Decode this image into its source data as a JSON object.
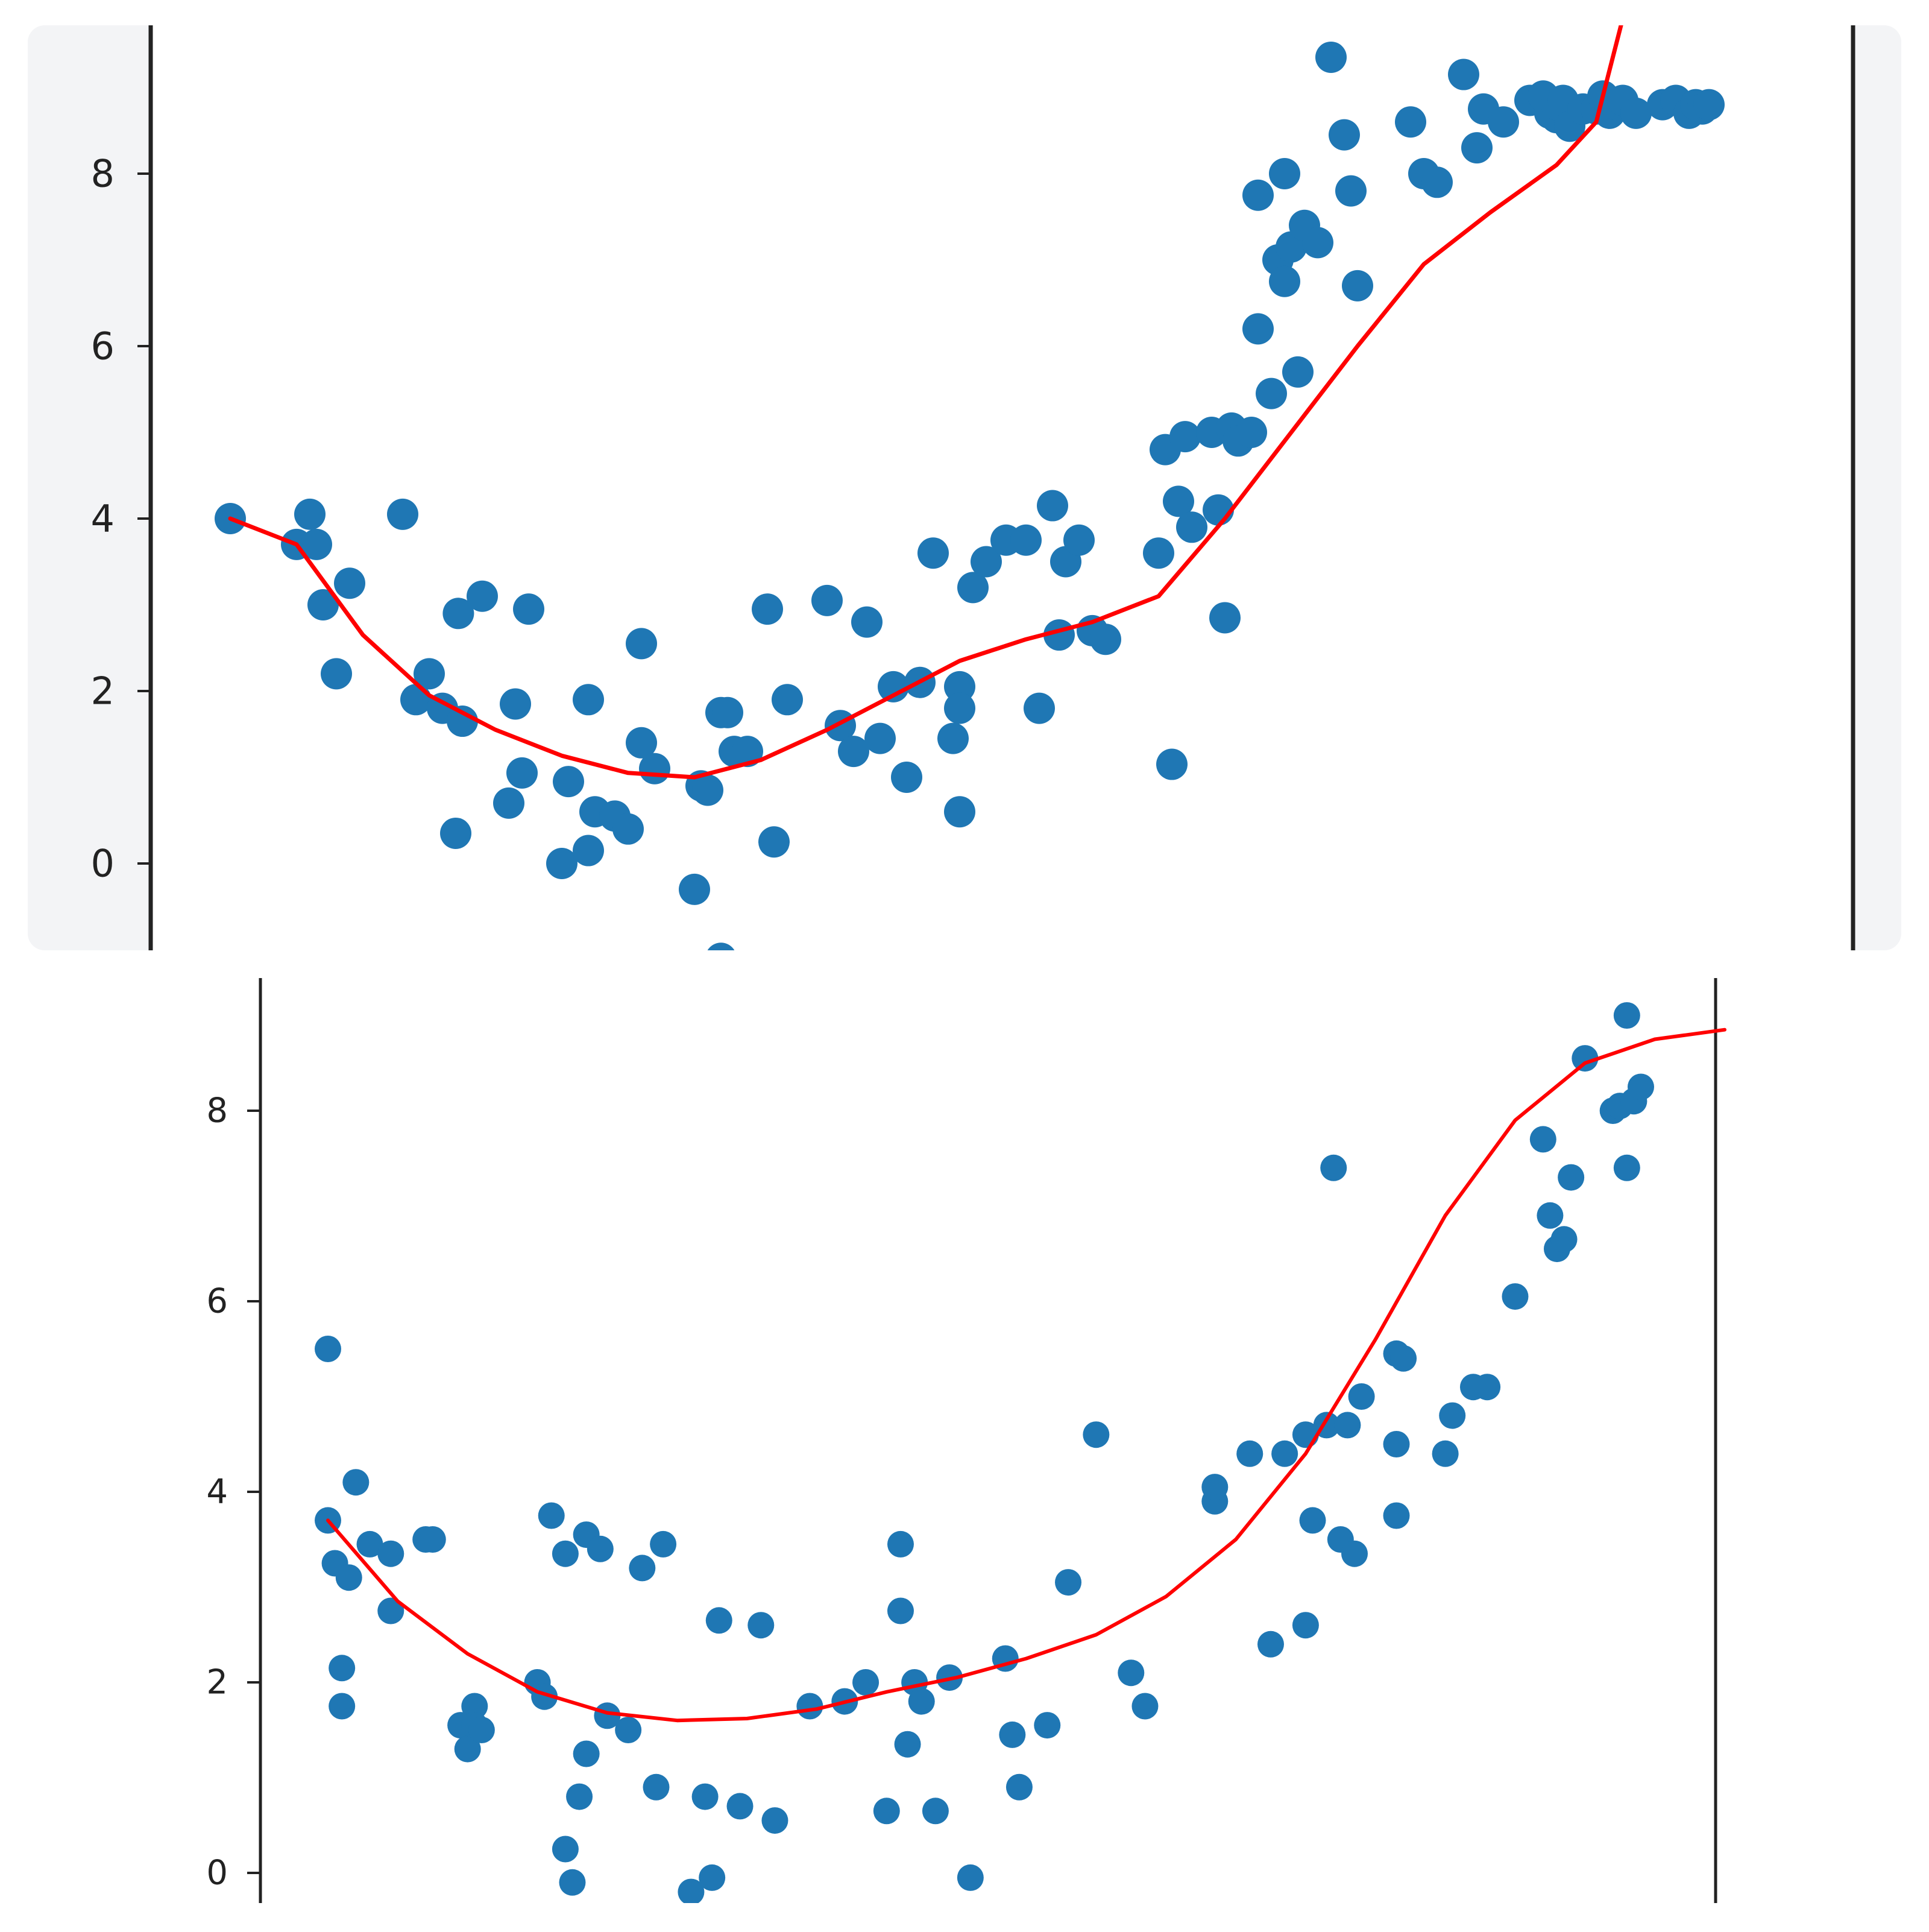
{
  "colors": {
    "background": "#ffffff",
    "top_panel_background": "#f3f4f6",
    "scatter": "#1f77b4",
    "fit_line": "#ff0000",
    "axis": "#222222"
  },
  "chart_data": [
    {
      "type": "scatter",
      "title": "",
      "xlabel": "",
      "ylabel": "",
      "ylim": [
        -1.0,
        9.8
      ],
      "yticks": [
        "0",
        "2",
        "4",
        "6",
        "8"
      ],
      "xticks": [],
      "grid": false,
      "legend": "none",
      "series": [
        {
          "kind": "scatter",
          "x": [
            0.0,
            0.5,
            0.6,
            0.65,
            0.7,
            0.8,
            0.9,
            1.3,
            1.4,
            1.5,
            1.6,
            1.7,
            1.72,
            1.75,
            1.9,
            2.1,
            2.15,
            2.2,
            2.25,
            2.5,
            2.55,
            2.7,
            2.7,
            2.75,
            2.9,
            3.0,
            3.1,
            3.1,
            3.2,
            3.5,
            3.55,
            3.6,
            3.7,
            3.7,
            3.75,
            3.8,
            3.9,
            4.05,
            4.1,
            4.2,
            4.5,
            4.6,
            4.7,
            4.8,
            4.9,
            5.0,
            5.1,
            5.2,
            5.3,
            5.45,
            5.5,
            5.5,
            5.5,
            5.6,
            5.7,
            5.85,
            6.0,
            6.1,
            6.2,
            6.25,
            6.3,
            6.4,
            6.5,
            6.6,
            7.0,
            7.05,
            7.1,
            7.15,
            7.2,
            7.25,
            7.4,
            7.45,
            7.5,
            7.55,
            7.6,
            7.7,
            7.75,
            7.75,
            7.85,
            7.9,
            7.95,
            7.95,
            8.0,
            8.05,
            8.1,
            8.2,
            8.3,
            8.4,
            8.45,
            8.5,
            8.9,
            9.0,
            9.1,
            9.3,
            9.4,
            9.45,
            9.6,
            9.8,
            9.9,
            9.95,
            10.0,
            10.0,
            10.05,
            10.1,
            10.2,
            10.3,
            10.35,
            10.4,
            10.45,
            10.5,
            10.6,
            10.8,
            10.9,
            11.0,
            11.05,
            11.1,
            11.15
          ],
          "y": [
            4.0,
            3.7,
            4.05,
            3.7,
            3.0,
            2.2,
            3.25,
            4.05,
            1.9,
            2.2,
            1.8,
            0.35,
            2.9,
            1.65,
            3.1,
            0.7,
            1.85,
            1.05,
            2.95,
            0.0,
            0.95,
            1.9,
            0.15,
            0.6,
            0.55,
            0.4,
            1.4,
            2.55,
            1.1,
            -0.3,
            0.9,
            0.85,
            1.75,
            -1.1,
            1.75,
            1.3,
            1.3,
            2.95,
            0.25,
            1.9,
            3.05,
            1.6,
            1.3,
            2.8,
            1.45,
            2.05,
            1.0,
            2.1,
            3.6,
            1.45,
            2.05,
            0.6,
            1.8,
            3.2,
            3.5,
            3.75,
            3.75,
            1.8,
            4.15,
            2.65,
            3.5,
            3.75,
            2.7,
            2.6,
            3.6,
            4.8,
            1.15,
            4.2,
            4.95,
            3.9,
            5.0,
            4.1,
            2.85,
            5.05,
            4.9,
            5.0,
            6.2,
            7.75,
            5.45,
            7.0,
            6.75,
            8.0,
            7.15,
            5.7,
            7.4,
            7.2,
            9.35,
            8.45,
            7.8,
            6.7,
            8.6,
            8.0,
            7.9,
            9.15,
            8.3,
            8.75,
            8.6,
            8.85,
            8.9,
            8.7,
            8.65,
            8.8,
            8.85,
            8.55,
            8.75,
            8.75,
            8.9,
            8.7,
            8.8,
            8.85,
            8.7,
            8.8,
            8.85,
            8.7,
            8.8,
            8.75,
            8.8
          ]
        },
        {
          "kind": "line",
          "x": [
            0.0,
            0.5,
            1.0,
            1.5,
            2.0,
            2.5,
            3.0,
            3.5,
            4.0,
            4.5,
            5.0,
            5.5,
            6.0,
            6.5,
            7.0,
            7.5,
            8.0,
            8.5,
            9.0,
            9.5,
            10.0,
            10.3,
            10.5
          ],
          "y": [
            4.0,
            3.7,
            2.65,
            1.95,
            1.55,
            1.25,
            1.05,
            1.0,
            1.2,
            1.55,
            1.95,
            2.35,
            2.6,
            2.8,
            3.1,
            4.0,
            5.0,
            6.0,
            6.95,
            7.55,
            8.1,
            8.6,
            9.8
          ]
        }
      ]
    },
    {
      "type": "scatter",
      "title": "",
      "xlabel": "",
      "ylabel": "",
      "ylim": [
        -0.35,
        9.3
      ],
      "yticks": [
        "0",
        "2",
        "4",
        "6",
        "8"
      ],
      "xticks": [],
      "grid": false,
      "legend": "none",
      "series": [
        {
          "kind": "scatter",
          "x": [
            0.0,
            0.0,
            0.05,
            0.1,
            0.1,
            0.15,
            0.2,
            0.3,
            0.45,
            0.45,
            0.7,
            0.75,
            0.95,
            1.0,
            1.05,
            1.05,
            1.1,
            1.5,
            1.55,
            1.6,
            1.7,
            1.7,
            1.75,
            1.8,
            1.85,
            1.85,
            1.95,
            2.0,
            2.15,
            2.25,
            2.35,
            2.4,
            2.6,
            2.7,
            2.75,
            2.8,
            2.95,
            3.1,
            3.2,
            3.45,
            3.7,
            3.85,
            4.0,
            4.1,
            4.1,
            4.15,
            4.2,
            4.25,
            4.35,
            4.45,
            4.6,
            4.85,
            4.9,
            4.95,
            5.15,
            5.3,
            5.5,
            5.75,
            5.85,
            6.35,
            6.35,
            6.6,
            6.75,
            6.85,
            7.0,
            7.0,
            7.05,
            7.15,
            7.2,
            7.25,
            7.3,
            7.35,
            7.4,
            7.65,
            7.65,
            7.65,
            7.7,
            8.0,
            8.05,
            8.2,
            8.3,
            8.5,
            8.7,
            8.75,
            8.8,
            8.85,
            8.9,
            9.0,
            9.2,
            9.25,
            9.3,
            9.3,
            9.35,
            9.4
          ],
          "y": [
            5.5,
            3.7,
            3.25,
            2.15,
            1.75,
            3.1,
            4.1,
            3.45,
            3.35,
            2.75,
            3.5,
            3.5,
            1.55,
            1.3,
            1.75,
            1.55,
            1.5,
            2.0,
            1.85,
            3.75,
            3.35,
            0.25,
            -0.1,
            0.8,
            3.55,
            1.25,
            3.4,
            1.65,
            1.5,
            3.2,
            0.9,
            3.45,
            -0.2,
            0.8,
            -0.05,
            2.65,
            0.7,
            2.6,
            0.55,
            1.75,
            1.8,
            2.0,
            0.65,
            3.45,
            2.75,
            1.35,
            2.0,
            1.8,
            0.65,
            2.05,
            -0.05,
            2.25,
            1.45,
            0.9,
            1.55,
            3.05,
            4.6,
            2.1,
            1.75,
            3.9,
            4.05,
            4.4,
            2.4,
            4.4,
            4.6,
            2.6,
            3.7,
            4.7,
            7.4,
            3.5,
            4.7,
            3.35,
            5.0,
            4.5,
            3.75,
            5.45,
            5.4,
            4.4,
            4.8,
            5.1,
            5.1,
            6.05,
            7.7,
            6.9,
            6.55,
            6.65,
            7.3,
            8.55,
            8.0,
            8.05,
            9.0,
            7.4,
            8.1,
            8.25
          ]
        },
        {
          "kind": "line",
          "x": [
            0.0,
            0.5,
            1.0,
            1.5,
            2.0,
            2.5,
            3.0,
            3.5,
            4.0,
            4.5,
            5.0,
            5.5,
            6.0,
            6.5,
            7.0,
            7.5,
            8.0,
            8.5,
            9.0,
            9.5,
            10.0
          ],
          "y": [
            3.7,
            2.85,
            2.3,
            1.9,
            1.68,
            1.6,
            1.62,
            1.72,
            1.9,
            2.05,
            2.25,
            2.5,
            2.9,
            3.5,
            4.4,
            5.6,
            6.9,
            7.9,
            8.5,
            8.75,
            8.85
          ]
        }
      ]
    }
  ]
}
